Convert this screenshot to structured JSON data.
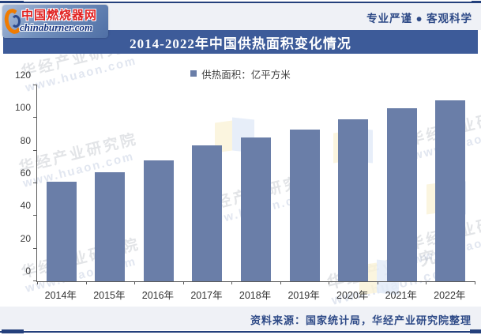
{
  "header": {
    "logo": {
      "brand_cn": "中国燃烧器网",
      "brand_domain": "chinaburner.com"
    },
    "slogan": "专业严谨 ● 客观科学"
  },
  "title_bar": {
    "title": "2014-2022年中国供热面积变化情况"
  },
  "chart_data": {
    "type": "bar",
    "title": "2014-2022年中国供热面积变化情况",
    "legend_label": "供热面积：亿平方米",
    "legend_position": "top-center",
    "categories": [
      "2014年",
      "2015年",
      "2016年",
      "2017年",
      "2018年",
      "2019年",
      "2020年",
      "2021年",
      "2022年"
    ],
    "values": [
      61,
      67,
      74,
      83,
      88,
      93,
      99,
      106,
      111
    ],
    "unit": "亿平方米",
    "xlabel": "",
    "ylabel": "",
    "ylim": [
      0,
      120
    ],
    "yticks": [
      0,
      20,
      40,
      60,
      80,
      100,
      120
    ],
    "grid": false,
    "bar_color": "#6a7ea8"
  },
  "watermark": {
    "line1": "华经产业研究院",
    "line2": "www.huaon.com"
  },
  "footer": {
    "source": "资料来源：国家统计局，华经产业研究院整理"
  },
  "colors": {
    "title_bar_bg": "#3d5b99",
    "accent_navy": "#24407c",
    "bar": "#6a7ea8",
    "band_bg": "#eff1f6",
    "axis": "#595959",
    "slogan_text": "#2e4a87",
    "logo_red": "#e01f1f",
    "logo_blue": "#15337f"
  }
}
